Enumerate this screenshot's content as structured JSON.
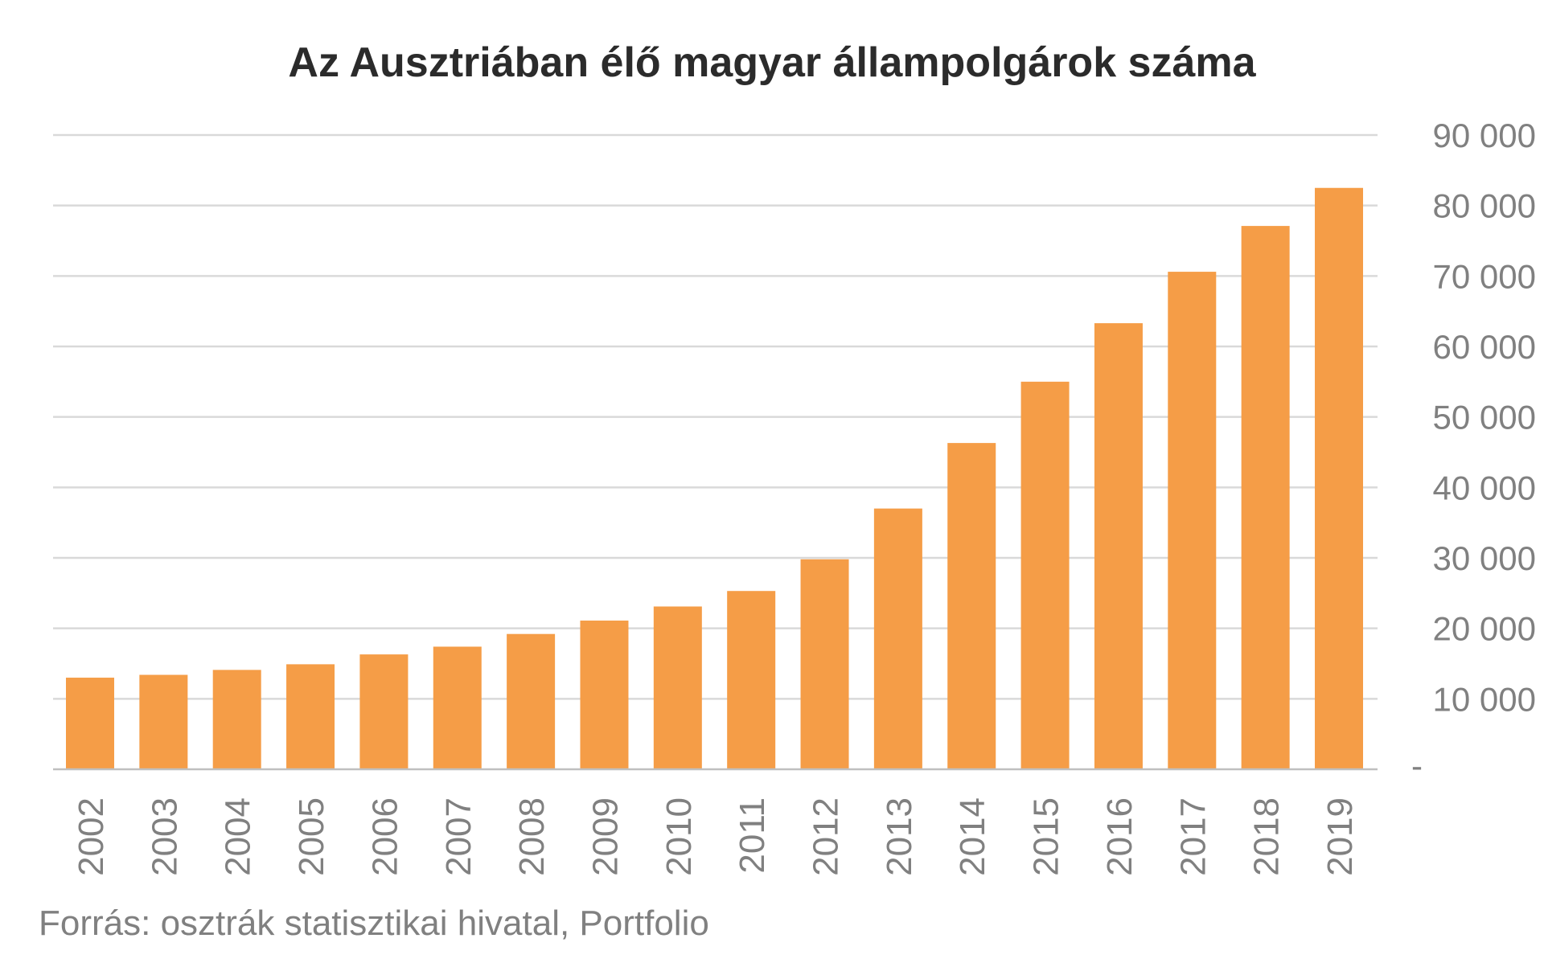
{
  "chart_data": {
    "type": "bar",
    "title": "Az Ausztriában élő magyar állampolgárok száma",
    "xlabel": "",
    "ylabel": "",
    "categories": [
      "2002",
      "2003",
      "2004",
      "2005",
      "2006",
      "2007",
      "2008",
      "2009",
      "2010",
      "2011",
      "2012",
      "2013",
      "2014",
      "2015",
      "2016",
      "2017",
      "2018",
      "2019"
    ],
    "values": [
      13000,
      13400,
      14100,
      14900,
      16300,
      17400,
      19200,
      21100,
      23100,
      25300,
      29800,
      37000,
      46300,
      55000,
      63300,
      70600,
      77100,
      82500
    ],
    "ylim": [
      0,
      90000
    ],
    "yticks": [
      0,
      10000,
      20000,
      30000,
      40000,
      50000,
      60000,
      70000,
      80000,
      90000
    ],
    "ytick_labels": [
      "-",
      "10 000",
      "20 000",
      "30 000",
      "40 000",
      "50 000",
      "60 000",
      "70 000",
      "80 000",
      "90 000"
    ],
    "y_axis_position": "right",
    "grid": true,
    "legend": "none",
    "bar_color": "#F59D47",
    "source": "Forrás: osztrák statisztikai hivatal, Portfolio"
  }
}
